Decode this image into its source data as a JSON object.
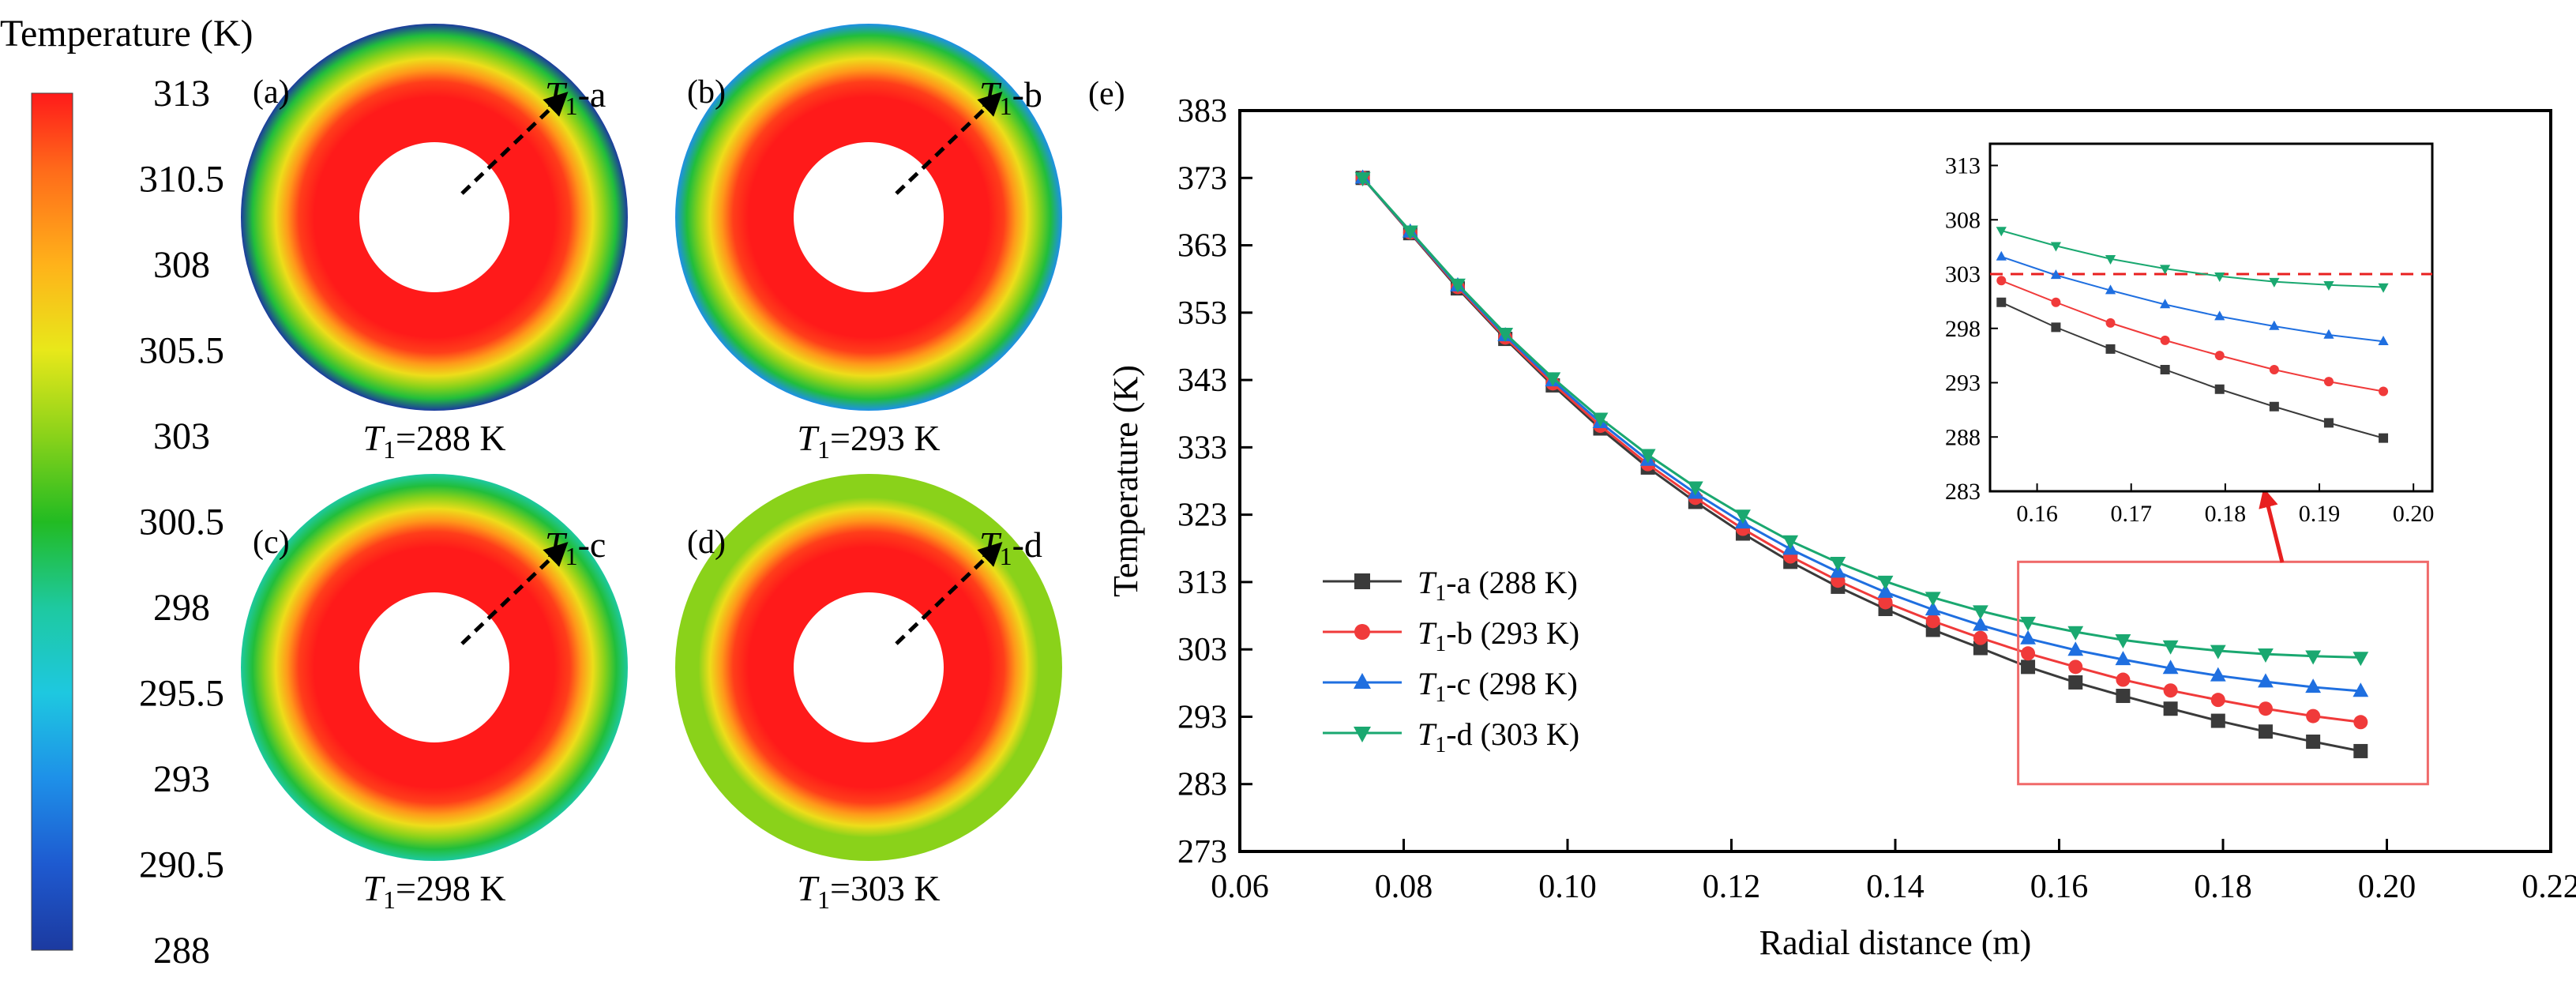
{
  "colorbar": {
    "title": "Temperature (K)",
    "ticks": [
      "313",
      "310.5",
      "308",
      "305.5",
      "303",
      "300.5",
      "298",
      "295.5",
      "293",
      "290.5",
      "288"
    ],
    "tick_values": [
      313,
      310.5,
      308,
      305.5,
      303,
      300.5,
      298,
      295.5,
      293,
      290.5,
      288
    ],
    "stops": [
      {
        "t": 0.0,
        "color": "#ff1a1a"
      },
      {
        "t": 0.09,
        "color": "#ff6b1a"
      },
      {
        "t": 0.2,
        "color": "#ffb21a"
      },
      {
        "t": 0.3,
        "color": "#e8e81a"
      },
      {
        "t": 0.4,
        "color": "#8ad21a"
      },
      {
        "t": 0.5,
        "color": "#22bb22"
      },
      {
        "t": 0.6,
        "color": "#1ec9a0"
      },
      {
        "t": 0.7,
        "color": "#1ec8e0"
      },
      {
        "t": 0.8,
        "color": "#1e90e8"
      },
      {
        "t": 0.9,
        "color": "#1e5ad0"
      },
      {
        "t": 1.0,
        "color": "#1c3aa0"
      }
    ]
  },
  "panels": [
    {
      "tag": "(a)",
      "arrow_sub": "1",
      "arrow_suffix": "-a",
      "caption_sub": "1",
      "caption_rest": "=288 K",
      "outer_temp": 288
    },
    {
      "tag": "(b)",
      "arrow_sub": "1",
      "arrow_suffix": "-b",
      "caption_sub": "1",
      "caption_rest": "=293 K",
      "outer_temp": 293
    },
    {
      "tag": "(c)",
      "arrow_sub": "1",
      "arrow_suffix": "-c",
      "caption_sub": "1",
      "caption_rest": "=298 K",
      "outer_temp": 298
    },
    {
      "tag": "(d)",
      "arrow_sub": "1",
      "arrow_suffix": "-d",
      "caption_sub": "1",
      "caption_rest": "=303 K",
      "outer_temp": 303
    }
  ],
  "symbol": "T",
  "chart_data": {
    "type": "line",
    "panel_tag": "(e)",
    "xlabel": "Radial distance (m)",
    "ylabel": "Temperature (K)",
    "xlim": [
      0.06,
      0.22
    ],
    "ylim": [
      273,
      383
    ],
    "xticks": [
      "0.06",
      "0.08",
      "0.10",
      "0.12",
      "0.14",
      "0.16",
      "0.18",
      "0.20",
      "0.22"
    ],
    "xtick_values": [
      0.06,
      0.08,
      0.1,
      0.12,
      0.14,
      0.16,
      0.18,
      0.2,
      0.22
    ],
    "yticks": [
      "273",
      "283",
      "293",
      "303",
      "313",
      "323",
      "333",
      "343",
      "353",
      "363",
      "373",
      "383"
    ],
    "ytick_values": [
      273,
      283,
      293,
      303,
      313,
      323,
      333,
      343,
      353,
      363,
      373,
      383
    ],
    "x": [
      0.075,
      0.0808,
      0.0866,
      0.0924,
      0.0982,
      0.104,
      0.1098,
      0.1156,
      0.1214,
      0.1272,
      0.133,
      0.1388,
      0.1446,
      0.1504,
      0.1562,
      0.162,
      0.1678,
      0.1736,
      0.1794,
      0.1852,
      0.191,
      0.1968
    ],
    "series": [
      {
        "name": "(288 K)",
        "label_sub": "1",
        "label_suffix": "-a",
        "marker": "square",
        "color": "#3a3a3a",
        "values": [
          373,
          364.8,
          356.6,
          349.1,
          342.2,
          335.8,
          330.0,
          324.9,
          320.2,
          316.0,
          312.3,
          309.0,
          305.9,
          303.2,
          300.4,
          298.1,
          296.1,
          294.2,
          292.4,
          290.8,
          289.3,
          287.9
        ]
      },
      {
        "name": "(293 K)",
        "label_sub": "1",
        "label_suffix": "-b",
        "marker": "circle",
        "color": "#f03a3a",
        "values": [
          373,
          364.9,
          356.8,
          349.3,
          342.5,
          336.2,
          330.5,
          325.5,
          320.9,
          316.8,
          313.2,
          310.0,
          307.2,
          304.7,
          302.4,
          300.4,
          298.5,
          296.9,
          295.5,
          294.2,
          293.1,
          292.2
        ]
      },
      {
        "name": "(298 K)",
        "label_sub": "1",
        "label_suffix": "-c",
        "marker": "triangle-up",
        "color": "#1f6fe0",
        "values": [
          373,
          365.0,
          357.0,
          349.6,
          342.9,
          336.7,
          331.1,
          326.2,
          321.8,
          317.9,
          314.5,
          311.5,
          308.9,
          306.6,
          304.6,
          302.9,
          301.5,
          300.2,
          299.1,
          298.2,
          297.4,
          296.8
        ]
      },
      {
        "name": "(303 K)",
        "label_sub": "1",
        "label_suffix": "-d",
        "marker": "triangle-down",
        "color": "#1aa870",
        "values": [
          373,
          365.1,
          357.2,
          349.9,
          343.3,
          337.3,
          331.9,
          327.1,
          322.9,
          319.1,
          315.9,
          313.1,
          310.7,
          308.7,
          307.0,
          305.6,
          304.4,
          303.5,
          302.8,
          302.3,
          302.0,
          301.8
        ]
      }
    ],
    "inset": {
      "xlim": [
        0.155,
        0.202
      ],
      "ylim": [
        283,
        315
      ],
      "xticks": [
        "0.16",
        "0.17",
        "0.18",
        "0.19",
        "0.20"
      ],
      "xtick_values": [
        0.16,
        0.17,
        0.18,
        0.19,
        0.2
      ],
      "yticks": [
        "283",
        "288",
        "293",
        "298",
        "303",
        "308",
        "313"
      ],
      "ytick_values": [
        283,
        288,
        293,
        298,
        303,
        308,
        313
      ],
      "reference_line": 303
    },
    "zoom_box": {
      "xlim": [
        0.155,
        0.205
      ],
      "ylim": [
        283,
        316
      ]
    }
  }
}
